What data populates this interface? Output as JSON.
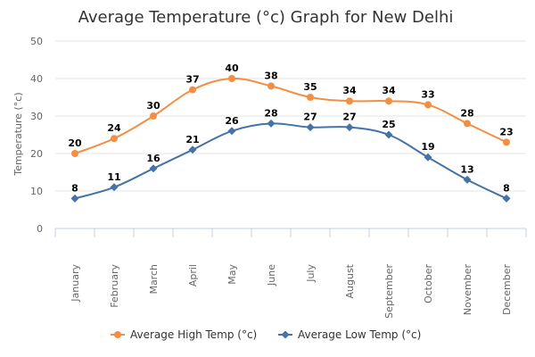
{
  "chart_data": {
    "type": "line",
    "title": "Average Temperature (°c) Graph for New Delhi",
    "xlabel": "",
    "ylabel": "Temperature (°c)",
    "ylim": [
      0,
      50
    ],
    "yticks": [
      0,
      10,
      20,
      30,
      40,
      50
    ],
    "categories": [
      "January",
      "February",
      "March",
      "April",
      "May",
      "June",
      "July",
      "August",
      "September",
      "October",
      "November",
      "December"
    ],
    "grid": true,
    "legend_position": "bottom",
    "series": [
      {
        "name": "Average High Temp (°c)",
        "color": "#f28f43",
        "marker": "circle",
        "values": [
          20,
          24,
          30,
          37,
          40,
          38,
          35,
          34,
          34,
          33,
          28,
          23
        ]
      },
      {
        "name": "Average Low Temp (°c)",
        "color": "#4572a7",
        "marker": "diamond",
        "values": [
          8,
          11,
          16,
          21,
          26,
          28,
          27,
          27,
          25,
          19,
          13,
          8
        ]
      }
    ]
  }
}
